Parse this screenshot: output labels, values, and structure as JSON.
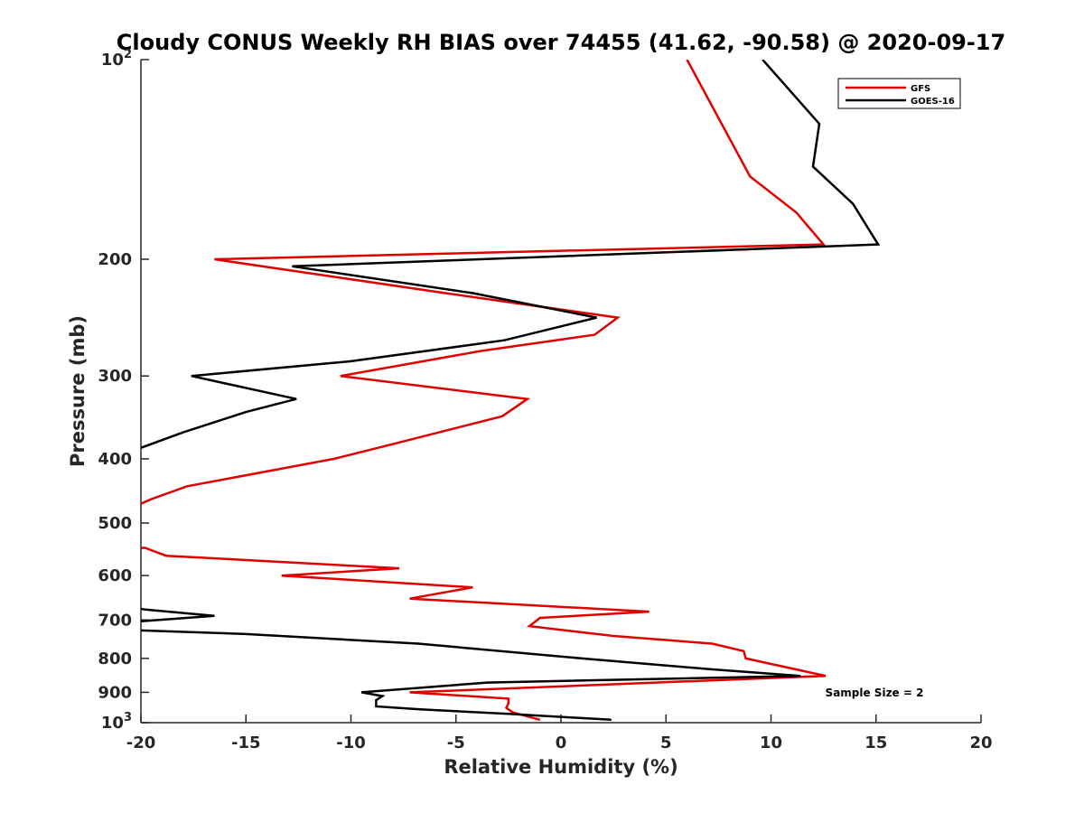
{
  "chart_data": {
    "type": "line",
    "title": "Cloudy CONUS Weekly RH BIAS over 74455 (41.62, -90.58) @ 2020-09-17",
    "xlabel": "Relative Humidity (%)",
    "ylabel": "Pressure (mb)",
    "xlim": [
      -20,
      20
    ],
    "ylim": [
      100,
      1000
    ],
    "y_scale": "log",
    "y_reversed": true,
    "x_ticks": [
      "-20",
      "-15",
      "-10",
      "-5",
      "0",
      "5",
      "10",
      "15",
      "20"
    ],
    "y_ticks": [
      {
        "value": 100,
        "base": "10",
        "exp": "2"
      },
      {
        "value": 200,
        "label": "200"
      },
      {
        "value": 300,
        "label": "300"
      },
      {
        "value": 400,
        "label": "400"
      },
      {
        "value": 500,
        "label": "500"
      },
      {
        "value": 600,
        "label": "600"
      },
      {
        "value": 700,
        "label": "700"
      },
      {
        "value": 800,
        "label": "800"
      },
      {
        "value": 900,
        "label": "900"
      },
      {
        "value": 1000,
        "base": "10",
        "exp": "3"
      }
    ],
    "grid": false,
    "legend_position": "top-right",
    "annotation": "Sample Size = 2",
    "series": [
      {
        "name": "GFS",
        "color": "#e00000",
        "points": [
          [
            6.0,
            100
          ],
          [
            9.0,
            150
          ],
          [
            11.2,
            170
          ],
          [
            12.5,
            190
          ],
          [
            -16.5,
            200
          ],
          [
            -5.5,
            225
          ],
          [
            2.7,
            245
          ],
          [
            1.6,
            260
          ],
          [
            -3.8,
            275
          ],
          [
            -10.5,
            300
          ],
          [
            -1.6,
            325
          ],
          [
            -2.8,
            345
          ],
          [
            -8.0,
            380
          ],
          [
            -10.8,
            400
          ],
          [
            -17.8,
            440
          ],
          [
            -19.5,
            460
          ],
          [
            -20.5,
            475
          ],
          [
            -20.5,
            545
          ],
          [
            -19.8,
            545
          ],
          [
            -18.8,
            560
          ],
          [
            -7.7,
            585
          ],
          [
            -13.3,
            600
          ],
          [
            -4.2,
            625
          ],
          [
            -7.2,
            650
          ],
          [
            4.2,
            680
          ],
          [
            -1.0,
            695
          ],
          [
            -1.5,
            715
          ],
          [
            2.5,
            740
          ],
          [
            7.2,
            760
          ],
          [
            8.7,
            780
          ],
          [
            8.8,
            800
          ],
          [
            12.6,
            850
          ],
          [
            -7.2,
            900
          ],
          [
            -2.5,
            920
          ],
          [
            -2.5,
            935
          ],
          [
            -2.6,
            950
          ],
          [
            -2.3,
            965
          ],
          [
            -1.0,
            990
          ]
        ]
      },
      {
        "name": "GOES-16",
        "color": "#000000",
        "points": [
          [
            9.6,
            100
          ],
          [
            12.3,
            125
          ],
          [
            12.0,
            145
          ],
          [
            13.9,
            165
          ],
          [
            15.1,
            190
          ],
          [
            -12.8,
            205
          ],
          [
            -4.2,
            225
          ],
          [
            1.7,
            245
          ],
          [
            -2.7,
            265
          ],
          [
            -10.0,
            285
          ],
          [
            -17.6,
            300
          ],
          [
            -12.6,
            325
          ],
          [
            -15.0,
            340
          ],
          [
            -18.0,
            365
          ],
          [
            -20.0,
            385
          ],
          [
            -20.5,
            385
          ],
          [
            -20.5,
            670
          ],
          [
            -19.8,
            675
          ],
          [
            -16.5,
            690
          ],
          [
            -20.5,
            705
          ],
          [
            -20.5,
            725
          ],
          [
            -15.0,
            735
          ],
          [
            -6.8,
            760
          ],
          [
            1.0,
            800
          ],
          [
            7.0,
            830
          ],
          [
            11.4,
            850
          ],
          [
            -3.5,
            870
          ],
          [
            -9.5,
            900
          ],
          [
            -8.5,
            912
          ],
          [
            -8.8,
            925
          ],
          [
            -8.8,
            945
          ],
          [
            -6.7,
            955
          ],
          [
            -2.5,
            970
          ],
          [
            2.4,
            990
          ]
        ]
      }
    ]
  }
}
